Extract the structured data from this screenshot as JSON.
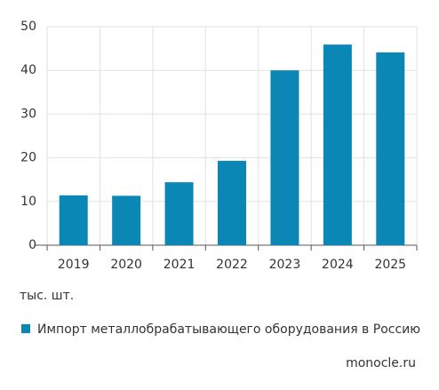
{
  "chart_data": {
    "type": "bar",
    "categories": [
      "2019",
      "2020",
      "2021",
      "2022",
      "2023",
      "2024",
      "2025"
    ],
    "series": [
      {
        "name": "Импорт металлобрабатывающего оборудования в Россию",
        "color": "#0a87b5",
        "values": [
          11.4,
          11.3,
          14.4,
          19.3,
          40.0,
          45.9,
          44.1
        ]
      }
    ],
    "ylim": [
      0,
      50
    ],
    "yticks": [
      0,
      10,
      20,
      30,
      40,
      50
    ],
    "grid": true,
    "y_unit_label": "тыс. шт.",
    "source": "monocle.ru"
  }
}
